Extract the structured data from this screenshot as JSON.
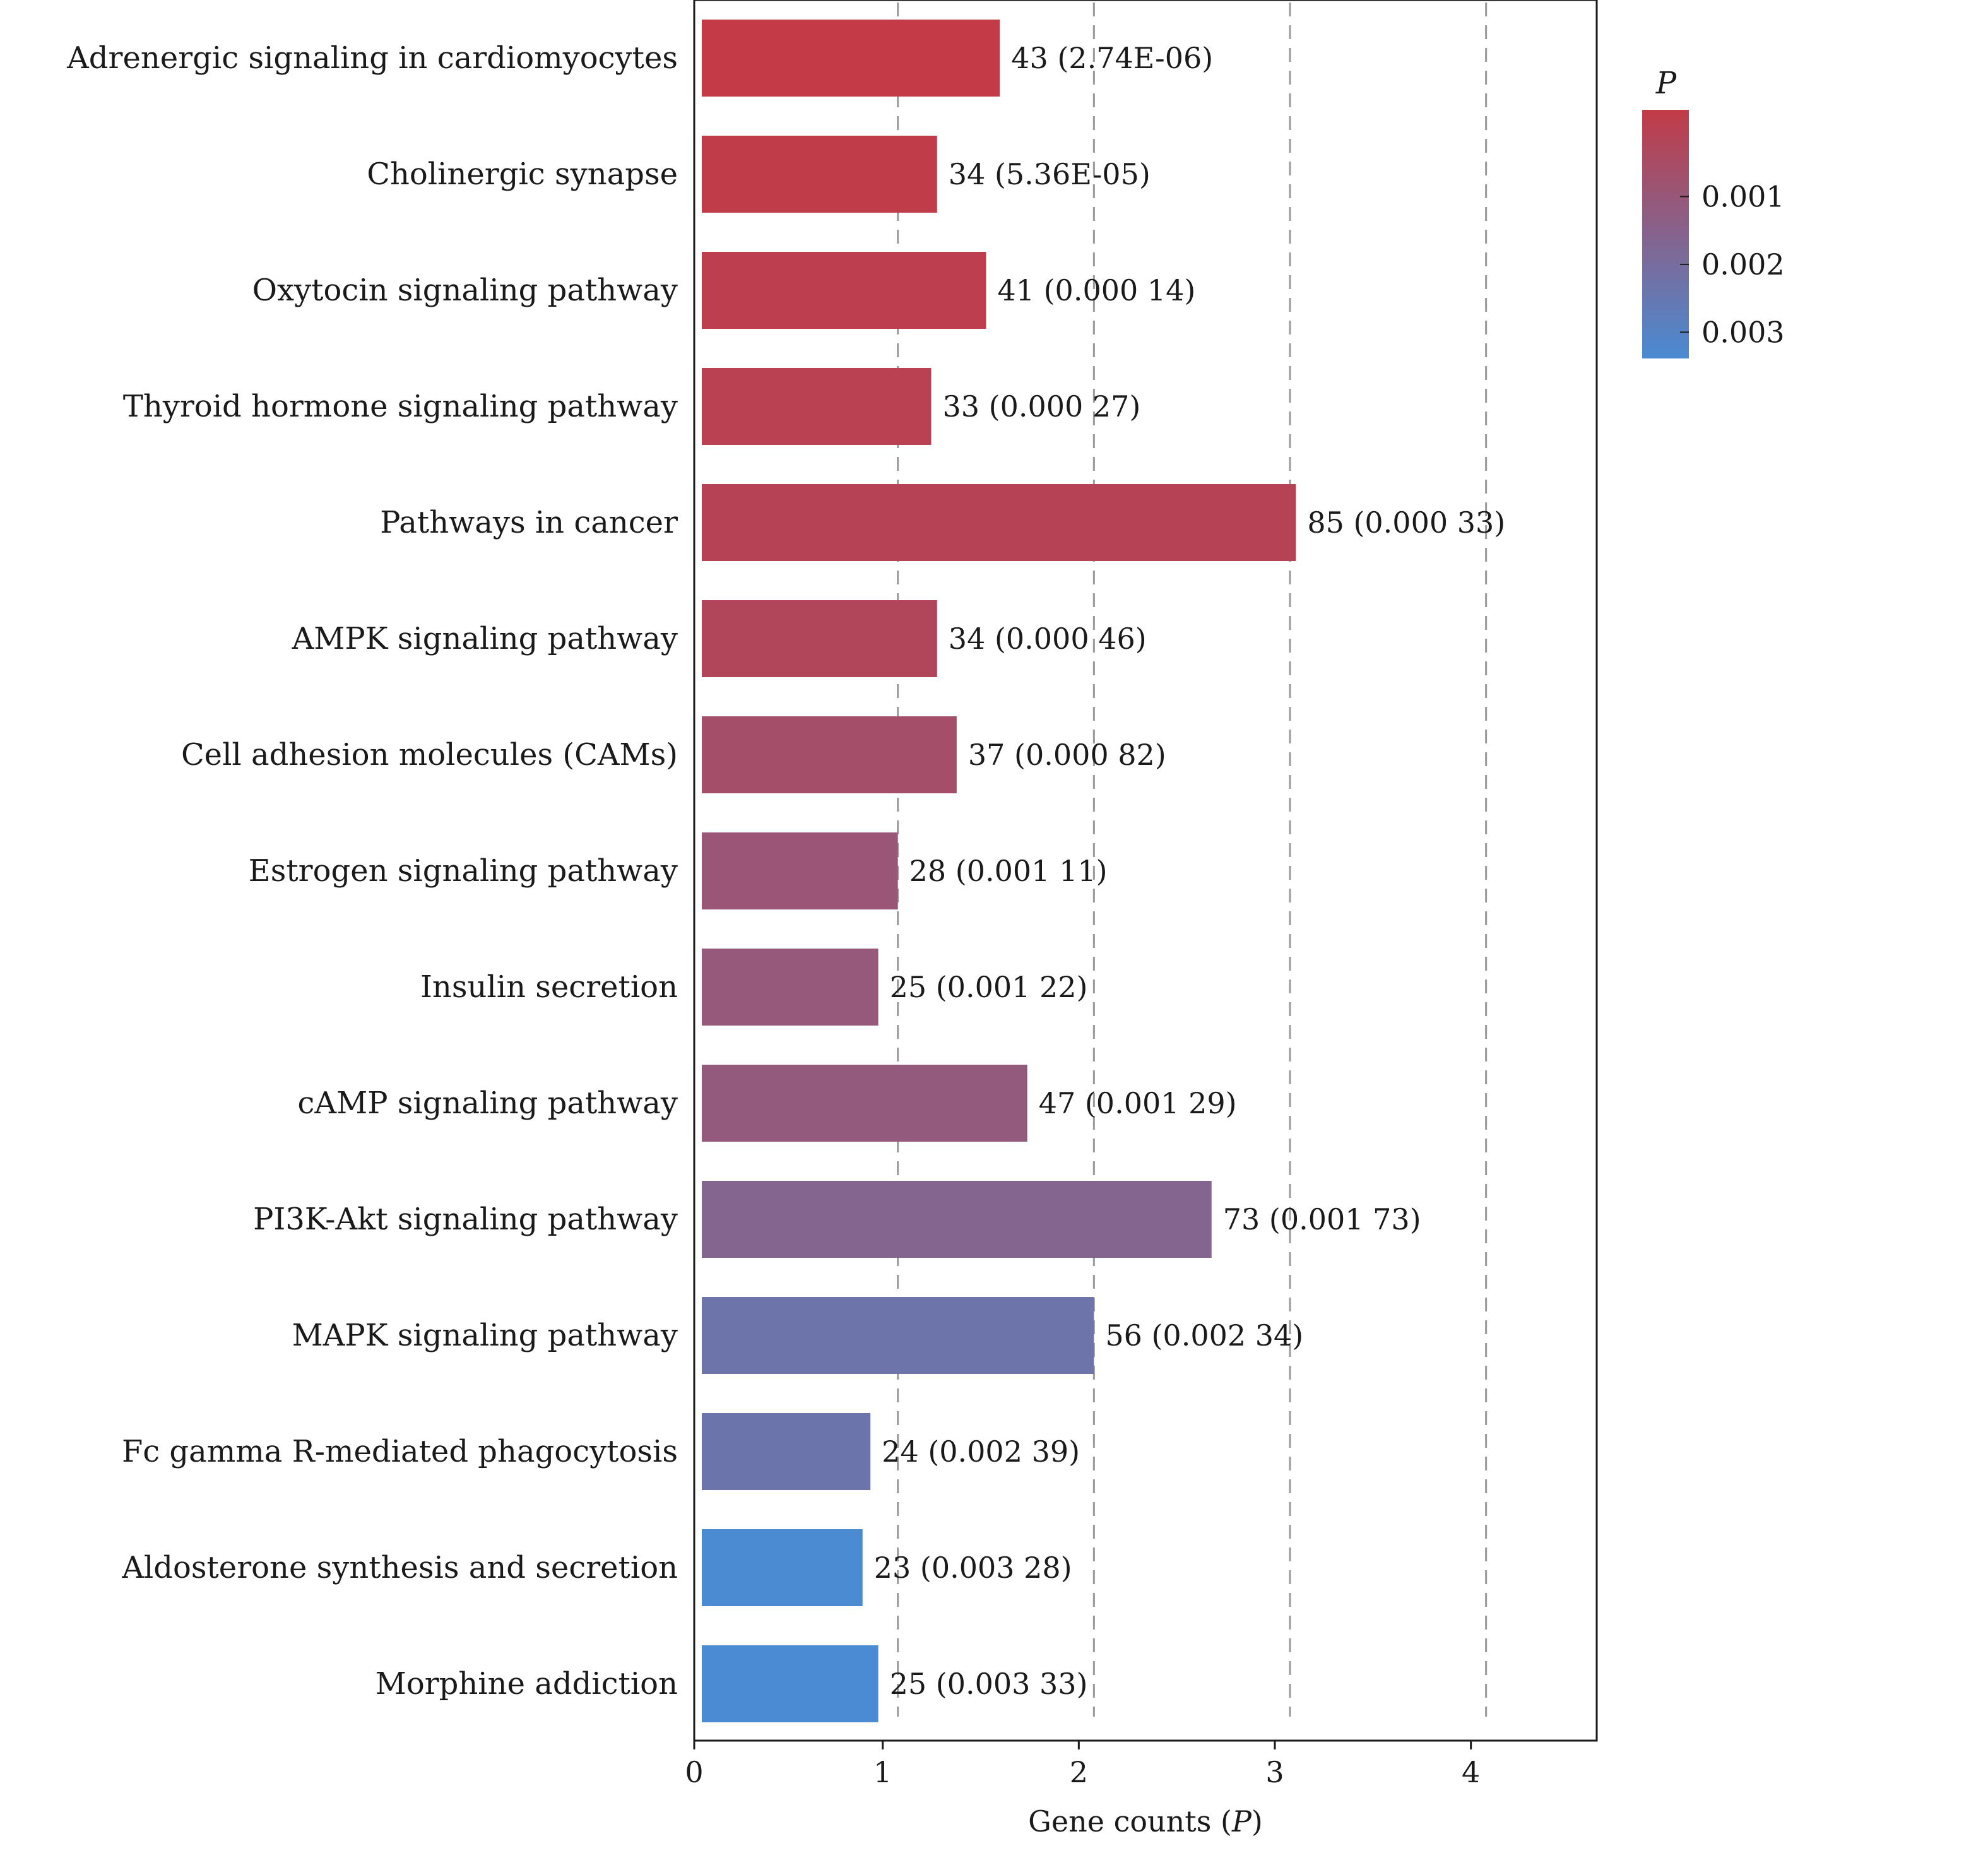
{
  "chart_data": {
    "type": "bar",
    "orientation": "horizontal",
    "title": "",
    "xlabel": "Gene counts (",
    "xlabel_italic": "P",
    "xlabel_suffix": ")",
    "ylabel": "",
    "xlim": [
      0,
      4.6
    ],
    "x_ticks": [
      "0",
      "1",
      "2",
      "3",
      "4"
    ],
    "grid": "vertical dashed",
    "categories": [
      "Adrenergic signaling in cardiomyocytes",
      "Cholinergic synapse",
      "Oxytocin signaling pathway",
      "Thyroid hormone signaling pathway",
      "Pathways in cancer",
      "AMPK signaling pathway",
      "Cell adhesion molecules (CAMs)",
      "Estrogen signaling pathway",
      "Insulin secretion",
      "cAMP signaling pathway",
      "PI3K-Akt signaling pathway",
      "MAPK signaling pathway",
      "Fc gamma R-mediated phagocytosis",
      "Aldosterone synthesis and secretion",
      "Morphine addiction"
    ],
    "values": [
      1.52,
      1.2,
      1.45,
      1.17,
      3.03,
      1.2,
      1.3,
      1.0,
      0.9,
      1.66,
      2.6,
      2.0,
      0.86,
      0.82,
      0.9
    ],
    "gene_counts": [
      43,
      34,
      41,
      33,
      85,
      34,
      37,
      28,
      25,
      47,
      73,
      56,
      24,
      23,
      25
    ],
    "p_values": [
      2.74e-06,
      5.36e-05,
      0.00014,
      0.00027,
      0.00033,
      0.00046,
      0.00082,
      0.00111,
      0.00122,
      0.00129,
      0.00173,
      0.00234,
      0.00239,
      0.00328,
      0.00333
    ],
    "bar_labels": [
      "43 (2.74E-06)",
      "34 (5.36E-05)",
      "41 (0.000 14)",
      "33 (0.000 27)",
      "85 (0.000 33)",
      "34 (0.000 46)",
      "37 (0.000 82)",
      "28 (0.001 11)",
      "25 (0.001 22)",
      "47 (0.001 29)",
      "73 (0.001 73)",
      "56 (0.002 34)",
      "24 (0.002 39)",
      "23 (0.003 28)",
      "25 (0.003 33)"
    ],
    "legend": {
      "title": "P",
      "placement": "top-right",
      "type": "color-gradient",
      "range": [
        0,
        0.0033
      ],
      "ticks": [
        0.001,
        0.002,
        0.003
      ],
      "tick_labels": [
        "0.001",
        "0.002",
        "0.003"
      ],
      "color_low": "#c23b47",
      "color_high": "#4a8bd3"
    }
  }
}
